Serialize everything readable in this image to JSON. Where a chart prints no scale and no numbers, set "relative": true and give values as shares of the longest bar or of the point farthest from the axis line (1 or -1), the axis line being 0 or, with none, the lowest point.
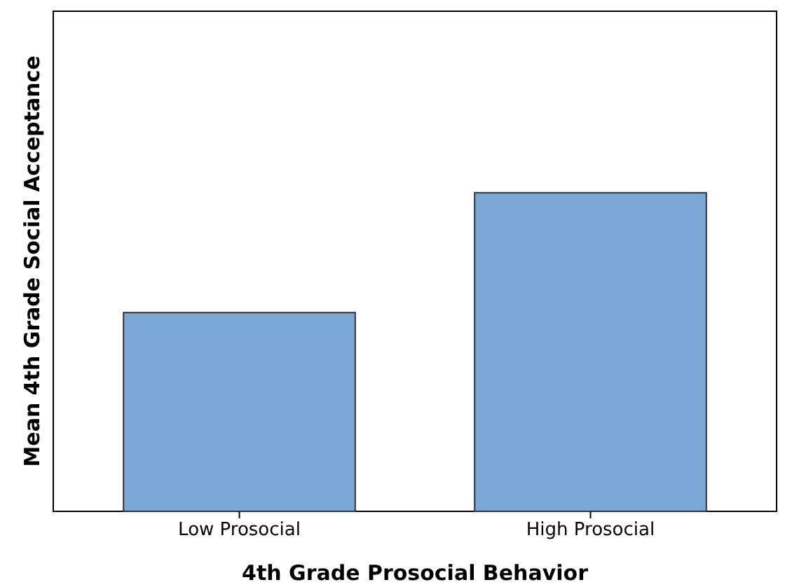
{
  "chart_data": {
    "type": "bar",
    "xlabel": "4th Grade Prosocial Behavior",
    "ylabel": "Mean 4th Grade Social Acceptance",
    "categories": [
      "Low Prosocial",
      "High Prosocial"
    ],
    "values": [
      0.624,
      1
    ],
    "color": "#7aa7d6",
    "relative": true
  }
}
